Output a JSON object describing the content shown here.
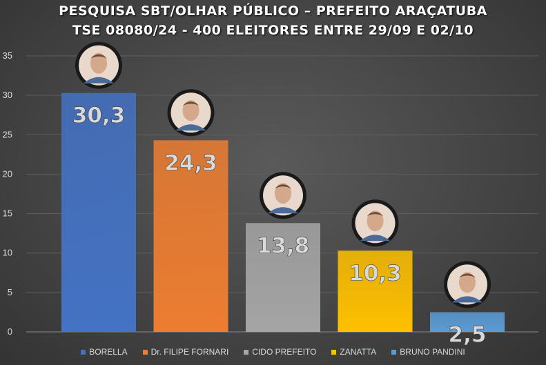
{
  "header": {
    "title_line1": "PESQUISA SBT/OLHAR PÚBLICO – PREFEITO ARAÇATUBA",
    "title_line2": "TSE 08080/24 - 400 ELEITORES ENTRE 29/09 E 02/10"
  },
  "chart_data": {
    "type": "bar",
    "categories": [
      "BORELLA",
      "Dr. FILIPE FORNARI",
      "CIDO PREFEITO",
      "ZANATTA",
      "BRUNO PANDINI"
    ],
    "values": [
      30.3,
      24.3,
      13.8,
      10.3,
      2.5
    ],
    "value_labels": [
      "30,3",
      "24,3",
      "13,8",
      "10,3",
      "2,5"
    ],
    "colors": [
      "#4472c4",
      "#ed7d31",
      "#a5a5a5",
      "#ffc000",
      "#5b9bd5"
    ],
    "ylim": [
      0,
      35
    ],
    "yticks": [
      "0",
      "5",
      "10",
      "15",
      "20",
      "25",
      "30",
      "35"
    ],
    "grid": true,
    "legend_position": "bottom"
  }
}
